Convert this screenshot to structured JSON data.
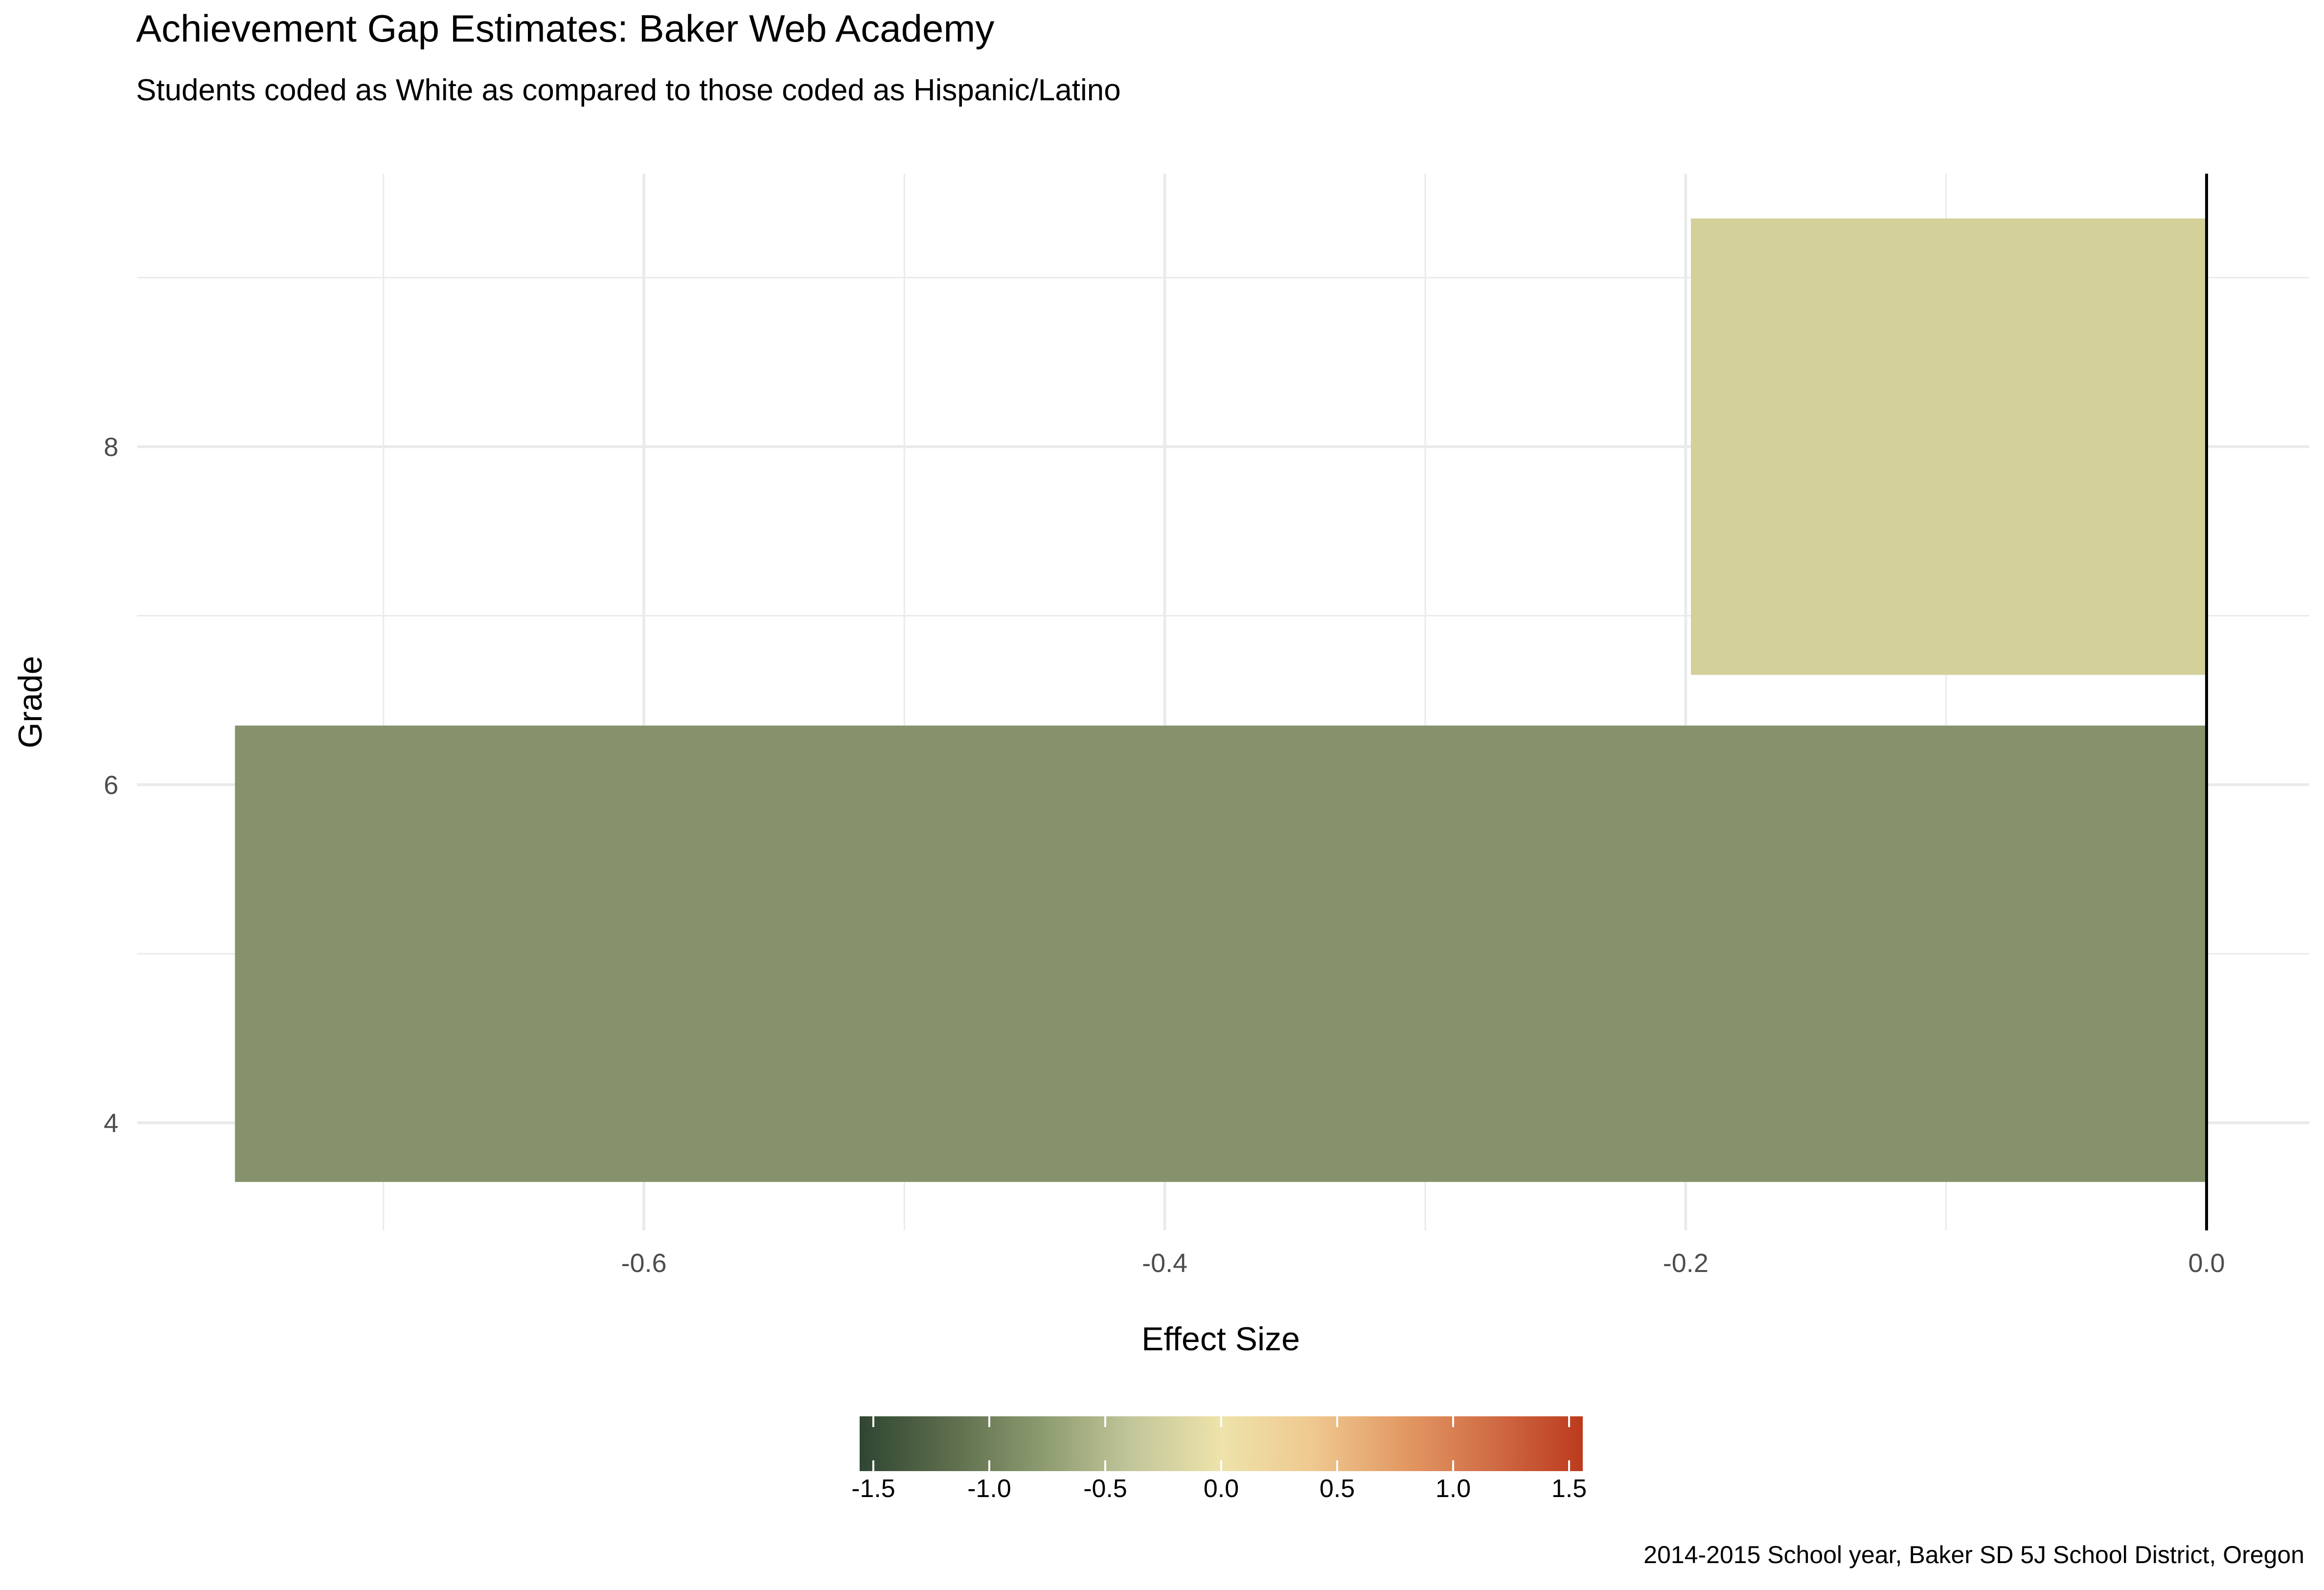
{
  "chart_data": {
    "type": "bar",
    "orientation": "horizontal",
    "title": "Achievement Gap Estimates: Baker Web Academy",
    "subtitle": "Students coded as White as compared to those coded as Hispanic/Latino",
    "caption": "2014-2015 School year, Baker SD 5J School District, Oregon",
    "xlabel": "Effect Size",
    "ylabel": "Grade",
    "xlim": [
      -0.8,
      0.0
    ],
    "ylim": [
      3.5,
      9.5
    ],
    "x_ticks": [
      {
        "value": -0.6,
        "label": "-0.6"
      },
      {
        "value": -0.4,
        "label": "-0.4"
      },
      {
        "value": -0.2,
        "label": "-0.2"
      },
      {
        "value": 0.0,
        "label": "0.0"
      }
    ],
    "y_ticks": [
      {
        "value": 4,
        "label": "4"
      },
      {
        "value": 6,
        "label": "6"
      },
      {
        "value": 8,
        "label": "8"
      }
    ],
    "grid": true,
    "bars": [
      {
        "grade": 5,
        "value": -0.757,
        "color": "#86926b"
      },
      {
        "grade": 8,
        "value": -0.198,
        "color": "#d4d09a"
      }
    ],
    "legend": {
      "type": "colorbar",
      "position": "bottom",
      "range": [
        -1.5,
        1.5
      ],
      "ticks": [
        {
          "value": -1.5,
          "label": "-1.5"
        },
        {
          "value": -1.0,
          "label": "-1.0"
        },
        {
          "value": -0.5,
          "label": "-0.5"
        },
        {
          "value": 0.0,
          "label": "0.0"
        },
        {
          "value": 0.5,
          "label": "0.5"
        },
        {
          "value": 1.0,
          "label": "1.0"
        },
        {
          "value": 1.5,
          "label": "1.5"
        }
      ],
      "colors": [
        "#2f4632",
        "#5d6d4d",
        "#8b9a6e",
        "#c2c69a",
        "#eee3aa",
        "#efc990",
        "#e39a65",
        "#d06c45",
        "#bc3a1d"
      ]
    }
  }
}
